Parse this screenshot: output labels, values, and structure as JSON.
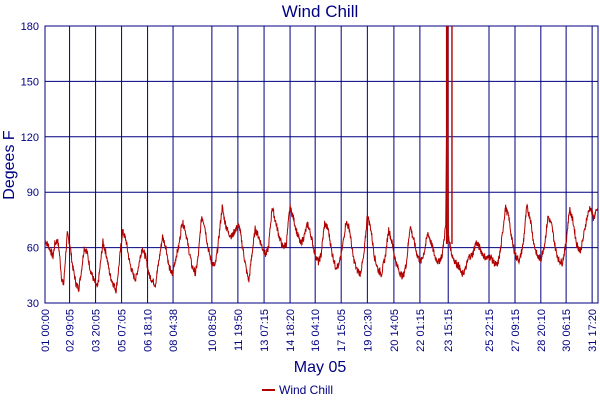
{
  "chart_data": {
    "type": "line",
    "title": "Wind Chill",
    "xlabel": "May 05",
    "ylabel": "Degees F",
    "ylim": [
      30,
      180
    ],
    "yticks": [
      30,
      60,
      90,
      120,
      150,
      180
    ],
    "grid": true,
    "legend_position": "bottom",
    "colors": {
      "series": "#b00000",
      "axis": "#000080",
      "grid": "#000080"
    },
    "x_tick_labels": [
      "01 00:00",
      "02 09:05",
      "03 20:05",
      "05 07:05",
      "06 18:10",
      "08 04:38",
      "10 08:50",
      "11 19:50",
      "13 07:15",
      "14 18:20",
      "16 04:10",
      "17 15:05",
      "19 02:30",
      "20 14:05",
      "22 01:15",
      "23 15:15",
      "25 22:15",
      "27 09:15",
      "28 20:10",
      "30 06:15",
      "31 17:20"
    ],
    "x_tick_days": [
      0,
      1.38,
      2.84,
      4.3,
      5.76,
      7.19,
      9.37,
      10.83,
      12.3,
      13.76,
      15.17,
      16.63,
      18.1,
      19.59,
      21.05,
      22.64,
      24.93,
      26.39,
      27.84,
      29.26,
      30.72
    ],
    "series": [
      {
        "name": "Wind Chill",
        "points": [
          [
            0.0,
            64
          ],
          [
            0.25,
            60
          ],
          [
            0.45,
            55
          ],
          [
            0.55,
            62
          ],
          [
            0.7,
            64
          ],
          [
            0.8,
            58
          ],
          [
            0.95,
            42
          ],
          [
            1.05,
            40
          ],
          [
            1.15,
            55
          ],
          [
            1.25,
            67
          ],
          [
            1.4,
            62
          ],
          [
            1.55,
            50
          ],
          [
            1.75,
            40
          ],
          [
            1.9,
            38
          ],
          [
            2.05,
            48
          ],
          [
            2.2,
            60
          ],
          [
            2.35,
            58
          ],
          [
            2.55,
            48
          ],
          [
            2.75,
            42
          ],
          [
            2.95,
            38
          ],
          [
            3.1,
            50
          ],
          [
            3.25,
            63
          ],
          [
            3.45,
            56
          ],
          [
            3.65,
            45
          ],
          [
            3.85,
            40
          ],
          [
            4.0,
            37
          ],
          [
            4.15,
            50
          ],
          [
            4.35,
            69
          ],
          [
            4.55,
            64
          ],
          [
            4.75,
            52
          ],
          [
            4.95,
            45
          ],
          [
            5.1,
            43
          ],
          [
            5.25,
            50
          ],
          [
            5.45,
            60
          ],
          [
            5.65,
            55
          ],
          [
            5.85,
            45
          ],
          [
            6.05,
            42
          ],
          [
            6.2,
            40
          ],
          [
            6.35,
            50
          ],
          [
            6.6,
            66
          ],
          [
            6.8,
            60
          ],
          [
            6.95,
            50
          ],
          [
            7.15,
            45
          ],
          [
            7.35,
            55
          ],
          [
            7.5,
            60
          ],
          [
            7.7,
            74
          ],
          [
            7.85,
            71
          ],
          [
            8.05,
            60
          ],
          [
            8.25,
            50
          ],
          [
            8.45,
            46
          ],
          [
            8.6,
            55
          ],
          [
            8.8,
            77
          ],
          [
            8.95,
            73
          ],
          [
            9.15,
            60
          ],
          [
            9.35,
            52
          ],
          [
            9.55,
            50
          ],
          [
            9.7,
            60
          ],
          [
            9.95,
            82
          ],
          [
            10.1,
            74
          ],
          [
            10.3,
            68
          ],
          [
            10.5,
            66
          ],
          [
            10.7,
            70
          ],
          [
            10.9,
            72
          ],
          [
            11.1,
            60
          ],
          [
            11.3,
            48
          ],
          [
            11.45,
            42
          ],
          [
            11.6,
            55
          ],
          [
            11.8,
            70
          ],
          [
            12.0,
            66
          ],
          [
            12.2,
            60
          ],
          [
            12.4,
            56
          ],
          [
            12.55,
            60
          ],
          [
            12.75,
            82
          ],
          [
            12.95,
            74
          ],
          [
            13.15,
            66
          ],
          [
            13.35,
            60
          ],
          [
            13.55,
            62
          ],
          [
            13.75,
            82
          ],
          [
            13.95,
            76
          ],
          [
            14.15,
            68
          ],
          [
            14.35,
            62
          ],
          [
            14.55,
            66
          ],
          [
            14.75,
            73
          ],
          [
            14.95,
            66
          ],
          [
            15.15,
            57
          ],
          [
            15.35,
            52
          ],
          [
            15.5,
            56
          ],
          [
            15.7,
            73
          ],
          [
            15.9,
            70
          ],
          [
            16.1,
            58
          ],
          [
            16.3,
            50
          ],
          [
            16.5,
            50
          ],
          [
            16.7,
            60
          ],
          [
            16.9,
            74
          ],
          [
            17.1,
            70
          ],
          [
            17.3,
            55
          ],
          [
            17.5,
            48
          ],
          [
            17.7,
            46
          ],
          [
            17.9,
            55
          ],
          [
            18.1,
            78
          ],
          [
            18.3,
            70
          ],
          [
            18.5,
            55
          ],
          [
            18.7,
            48
          ],
          [
            18.9,
            46
          ],
          [
            19.1,
            55
          ],
          [
            19.3,
            70
          ],
          [
            19.5,
            62
          ],
          [
            19.7,
            52
          ],
          [
            19.9,
            47
          ],
          [
            20.1,
            44
          ],
          [
            20.3,
            52
          ],
          [
            20.5,
            72
          ],
          [
            20.7,
            64
          ],
          [
            20.9,
            56
          ],
          [
            21.1,
            52
          ],
          [
            21.3,
            58
          ],
          [
            21.5,
            68
          ],
          [
            21.7,
            62
          ],
          [
            21.9,
            55
          ],
          [
            22.1,
            52
          ],
          [
            22.3,
            56
          ],
          [
            22.5,
            72
          ],
          [
            22.6,
            180
          ],
          [
            22.65,
            66
          ],
          [
            22.85,
            56
          ],
          [
            23.05,
            52
          ],
          [
            23.25,
            50
          ],
          [
            23.4,
            45
          ],
          [
            23.6,
            48
          ],
          [
            23.8,
            55
          ],
          [
            24.0,
            56
          ],
          [
            24.2,
            63
          ],
          [
            24.4,
            60
          ],
          [
            24.6,
            56
          ],
          [
            24.8,
            54
          ],
          [
            25.0,
            55
          ],
          [
            25.2,
            52
          ],
          [
            25.4,
            50
          ],
          [
            25.6,
            60
          ],
          [
            25.85,
            82
          ],
          [
            26.05,
            76
          ],
          [
            26.25,
            62
          ],
          [
            26.45,
            55
          ],
          [
            26.65,
            53
          ],
          [
            26.85,
            62
          ],
          [
            27.05,
            82
          ],
          [
            27.25,
            76
          ],
          [
            27.45,
            62
          ],
          [
            27.65,
            55
          ],
          [
            27.85,
            54
          ],
          [
            28.05,
            62
          ],
          [
            28.25,
            77
          ],
          [
            28.45,
            72
          ],
          [
            28.65,
            60
          ],
          [
            28.85,
            53
          ],
          [
            29.05,
            52
          ],
          [
            29.25,
            62
          ],
          [
            29.45,
            81
          ],
          [
            29.65,
            74
          ],
          [
            29.85,
            62
          ],
          [
            30.05,
            58
          ],
          [
            30.2,
            64
          ],
          [
            30.4,
            75
          ],
          [
            30.6,
            82
          ],
          [
            30.8,
            76
          ],
          [
            31.0,
            80
          ],
          [
            31.05,
            82
          ]
        ],
        "spike_days": [
          22.55,
          22.62,
          22.85
        ]
      }
    ]
  }
}
